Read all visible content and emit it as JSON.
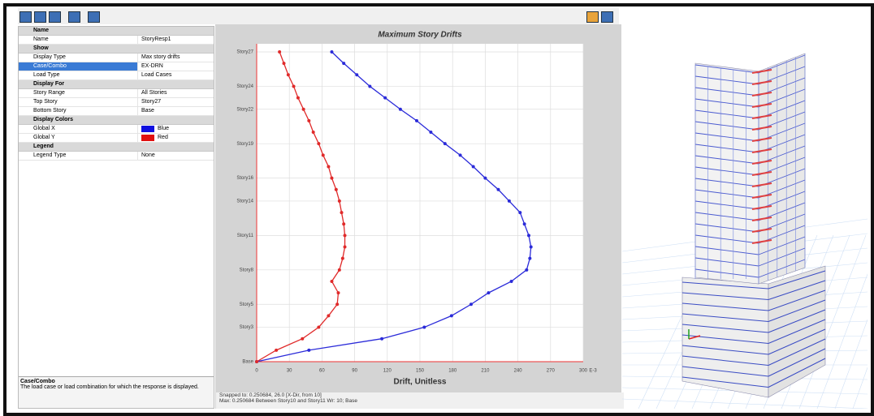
{
  "toolbar_hint": "",
  "panel": {
    "sections": [
      {
        "title": "Name",
        "rows": [
          [
            "Name",
            "StoryResp1"
          ]
        ]
      },
      {
        "title": "Show",
        "rows": [
          [
            "Display Type",
            "Max story drifts"
          ],
          [
            "Case/Combo",
            "EX-DRN"
          ],
          [
            "Load Type",
            "Load Cases"
          ]
        ]
      },
      {
        "title": "Display For",
        "rows": [
          [
            "Story Range",
            "All Stories"
          ],
          [
            "Top Story",
            "Story27"
          ],
          [
            "Bottom Story",
            "Base"
          ]
        ]
      },
      {
        "title": "Display Colors",
        "rows": [
          [
            "Global X",
            "Blue"
          ],
          [
            "Global Y",
            "Red"
          ]
        ]
      },
      {
        "title": "Legend",
        "rows": [
          [
            "Legend Type",
            "None"
          ]
        ]
      }
    ],
    "help": {
      "title": "Case/Combo",
      "text": "The load case or load combination for which the response is displayed."
    }
  },
  "chart_data": {
    "type": "line",
    "title": "Maximum Story Drifts",
    "xlabel": "Drift, Unitless",
    "x_exponent": "E-3",
    "categories": [
      "Base",
      null,
      null,
      "Story3",
      null,
      "Story5",
      null,
      null,
      "Story8",
      null,
      null,
      "Story11",
      null,
      null,
      "Story14",
      null,
      "Story16",
      null,
      null,
      "Story19",
      null,
      null,
      "Story22",
      null,
      "Story24",
      null,
      null,
      "Story27"
    ],
    "xlim": [
      0,
      300
    ],
    "xticks": [
      0,
      30,
      60,
      90,
      120,
      150,
      180,
      210,
      240,
      270,
      300
    ],
    "grid": true,
    "series": [
      {
        "name": "Global X",
        "color": "#2b2bd9",
        "values": [
          0,
          48,
          115,
          154,
          179,
          197,
          213,
          234,
          248,
          251,
          252,
          250,
          246,
          242,
          232,
          222,
          210,
          199,
          187,
          173,
          160,
          147,
          132,
          118,
          104,
          92,
          80,
          69
        ]
      },
      {
        "name": "Global Y",
        "color": "#e02a2a",
        "values": [
          0,
          18,
          42,
          57,
          66,
          74,
          75,
          69,
          76,
          79,
          81,
          81,
          80,
          78,
          76,
          73,
          69,
          66,
          61,
          57,
          52,
          48,
          43,
          38,
          34,
          29,
          25,
          21
        ]
      }
    ]
  },
  "status": [
    "Snapped to: 0.250684, 26.0  [X-Dir, from 10]",
    "Max: 0.250684  Between Story10 and Story11  Wr: 10; Base"
  ]
}
